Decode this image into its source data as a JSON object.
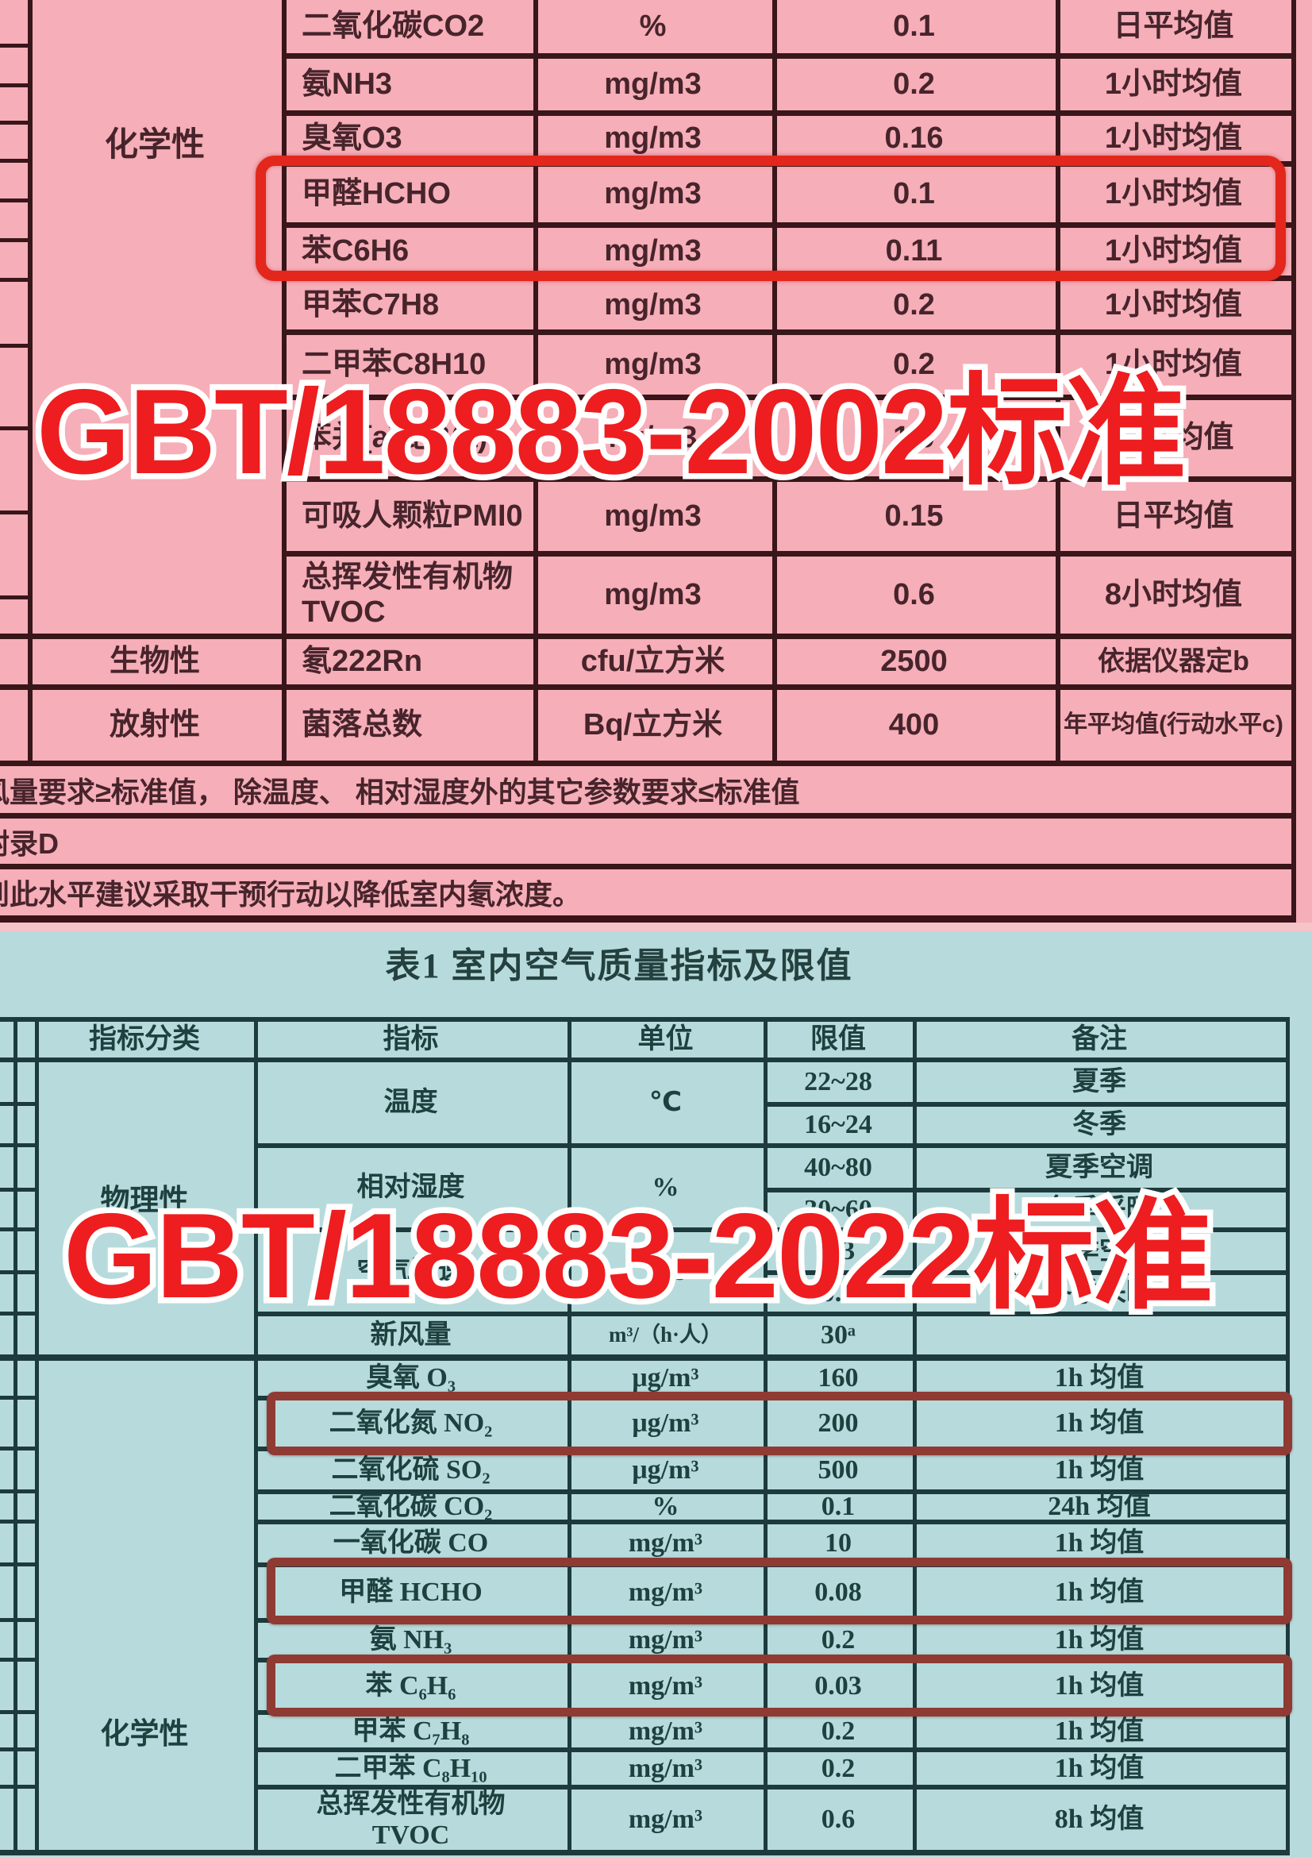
{
  "colors": {
    "pink_bg": "#f6aeb8",
    "pink_line": "#38161a",
    "pink_text": "#47242b",
    "teal_bg": "#b7dbdc",
    "teal_line": "#1d3a3c",
    "teal_text": "#1e403f",
    "highlight_red": "#e3271c",
    "highlight_dark_red": "#8f3a33",
    "watermark_red": "#ee1d20",
    "watermark_outline": "#ffffff"
  },
  "watermarks": {
    "top": "GBT/18883-2002标准",
    "bottom": "GBT/18883-2022标准"
  },
  "pink_table": {
    "category_chemical": "化学性",
    "rows": [
      {
        "indicator": "二氧化碳CO2",
        "unit": "%",
        "value": "0.1",
        "remark": "日平均值"
      },
      {
        "indicator": "氨NH3",
        "unit": "mg/m3",
        "value": "0.2",
        "remark": "1小时均值"
      },
      {
        "indicator": "臭氧O3",
        "unit": "mg/m3",
        "value": "0.16",
        "remark": "1小时均值"
      },
      {
        "indicator": "甲醛HCHO",
        "unit": "mg/m3",
        "value": "0.1",
        "remark": "1小时均值"
      },
      {
        "indicator": "苯C6H6",
        "unit": "mg/m3",
        "value": "0.11",
        "remark": "1小时均值"
      },
      {
        "indicator": "甲苯C7H8",
        "unit": "mg/m3",
        "value": "0.2",
        "remark": "1小时均值"
      },
      {
        "indicator": "二甲苯C8H10",
        "unit": "mg/m3",
        "value": "0.2",
        "remark": "1小时均值"
      },
      {
        "indicator": "苯并[a]芘B(a)P",
        "unit": "ng/m3",
        "value": "1.0",
        "remark": "日平均值"
      },
      {
        "indicator": "可吸人颗粒PMI0",
        "unit": "mg/m3",
        "value": "0.15",
        "remark": "日平均值"
      },
      {
        "indicator": "总挥发性有机物\nTVOC",
        "unit": "mg/m3",
        "value": "0.6",
        "remark": "8小时均值"
      }
    ],
    "bio_row": {
      "category": "生物性",
      "indicator": "氡222Rn",
      "unit": "cfu/立方米",
      "value": "2500",
      "remark": "依据仪器定b"
    },
    "rad_row": {
      "category": "放射性",
      "indicator": "菌落总数",
      "unit": "Bq/立方米",
      "value": "400",
      "remark": "年平均值(行动水平c)"
    },
    "notes": [
      "风量要求≥标准值， 除温度、 相对湿度外的其它参数要求≤标准值",
      "附录D",
      "到此水平建议采取干预行动以降低室内氡浓度。"
    ]
  },
  "teal_table": {
    "title": "表1  室内空气质量指标及限值",
    "header": {
      "category": "指标分类",
      "indicator": "指标",
      "unit": "单位",
      "limit": "限值",
      "remark": "备注"
    },
    "category_physical": "物理性",
    "category_chemical": "化学性",
    "groups": [
      {
        "indicator": "温度",
        "unit": "℃",
        "sub": [
          {
            "limit": "22~28",
            "remark": "夏季"
          },
          {
            "limit": "16~24",
            "remark": "冬季"
          }
        ]
      },
      {
        "indicator": "相对湿度",
        "unit": "%",
        "sub": [
          {
            "limit": "40~80",
            "remark": "夏季空调"
          },
          {
            "limit": "30~60",
            "remark": "冬季采暖"
          }
        ]
      },
      {
        "indicator": "空气流速",
        "unit": "m/s",
        "sub": [
          {
            "limit": "0.3",
            "remark": "夏季空调"
          },
          {
            "limit": "0.2",
            "remark": "冬季采暖"
          }
        ]
      }
    ],
    "rows": [
      {
        "indicator": "新风量",
        "unit": "m³/（h·人）",
        "limit": "30ᵃ",
        "remark": ""
      },
      {
        "indicator": "臭氧 O₃",
        "unit": "μg/m³",
        "limit": "160",
        "remark": "1h 均值"
      },
      {
        "indicator": "二氧化氮 NO₂",
        "unit": "μg/m³",
        "limit": "200",
        "remark": "1h 均值"
      },
      {
        "indicator": "二氧化硫 SO₂",
        "unit": "μg/m³",
        "limit": "500",
        "remark": "1h 均值"
      },
      {
        "indicator": "二氧化碳 CO₂",
        "unit": "%",
        "limit": "0.1",
        "remark": "24h 均值"
      },
      {
        "indicator": "一氧化碳 CO",
        "unit": "mg/m³",
        "limit": "10",
        "remark": "1h 均值"
      },
      {
        "indicator": "甲醛 HCHO",
        "unit": "mg/m³",
        "limit": "0.08",
        "remark": "1h 均值"
      },
      {
        "indicator": "氨 NH₃",
        "unit": "mg/m³",
        "limit": "0.2",
        "remark": "1h 均值"
      },
      {
        "indicator": "苯 C₆H₆",
        "unit": "mg/m³",
        "limit": "0.03",
        "remark": "1h 均值"
      },
      {
        "indicator": "甲苯 C₇H₈",
        "unit": "mg/m³",
        "limit": "0.2",
        "remark": "1h 均值"
      },
      {
        "indicator": "二甲苯 C₈H₁₀",
        "unit": "mg/m³",
        "limit": "0.2",
        "remark": "1h 均值"
      },
      {
        "indicator": "总挥发性有机物\nTVOC",
        "unit": "mg/m³",
        "limit": "0.6",
        "remark": "8h 均值"
      }
    ]
  }
}
